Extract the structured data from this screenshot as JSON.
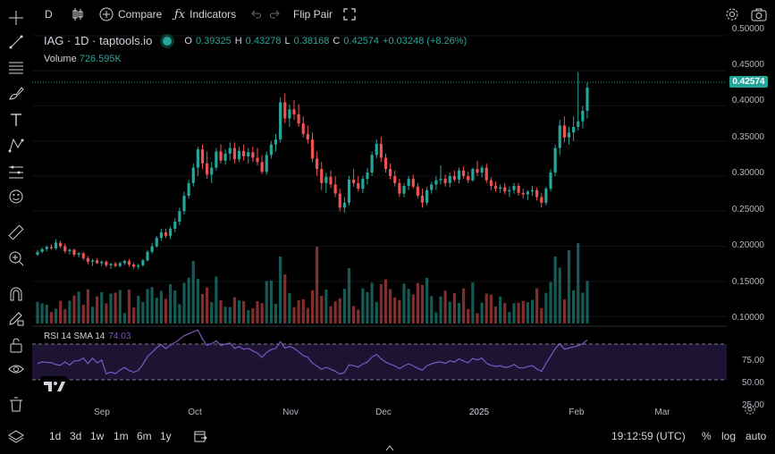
{
  "toolbar": {
    "interval": "D",
    "compare": "Compare",
    "indicators": "Indicators",
    "flip_pair": "Flip Pair"
  },
  "legend": {
    "symbol": "IAG · 1D · taptools.io",
    "open_label": "O",
    "open": "0.39325",
    "high_label": "H",
    "high": "0.43278",
    "low_label": "L",
    "low": "0.38168",
    "close_label": "C",
    "close": "0.42574",
    "change": "+0.03248 (+8.26%)",
    "volume_label": "Volume",
    "volume": "726.595K"
  },
  "rsi_legend": {
    "label": "RSI 14 SMA 14",
    "value": "74.03"
  },
  "price_axis": {
    "labels": [
      "0.50000",
      "0.45000",
      "0.40000",
      "0.35000",
      "0.30000",
      "0.25000",
      "0.20000",
      "0.15000",
      "0.10000"
    ],
    "current": "0.42574"
  },
  "rsi_axis": {
    "labels": [
      "75.00",
      "50.00",
      "25.00"
    ]
  },
  "time_axis": {
    "labels": [
      "Sep",
      "Oct",
      "Nov",
      "Dec",
      "2025",
      "Feb",
      "Mar"
    ]
  },
  "bottom": {
    "ranges": [
      "1d",
      "3d",
      "1w",
      "1m",
      "6m",
      "1y"
    ],
    "clock": "19:12:59 (UTC)",
    "percent": "%",
    "log": "log",
    "auto": "auto"
  },
  "colors": {
    "up": "#26a69a",
    "down": "#ef5350",
    "rsi": "#7e57c2"
  },
  "chart_data": {
    "type": "candlestick",
    "title": "IAG · 1D · taptools.io",
    "y_range": [
      0.09,
      0.51
    ],
    "x_range": [
      "Aug",
      "Mar"
    ],
    "ohlc": [
      [
        0.188,
        0.195,
        0.186,
        0.192
      ],
      [
        0.192,
        0.198,
        0.19,
        0.196
      ],
      [
        0.196,
        0.201,
        0.193,
        0.199
      ],
      [
        0.199,
        0.203,
        0.195,
        0.197
      ],
      [
        0.197,
        0.21,
        0.195,
        0.205
      ],
      [
        0.205,
        0.208,
        0.197,
        0.2
      ],
      [
        0.2,
        0.204,
        0.19,
        0.193
      ],
      [
        0.193,
        0.197,
        0.188,
        0.195
      ],
      [
        0.195,
        0.197,
        0.185,
        0.188
      ],
      [
        0.188,
        0.192,
        0.184,
        0.19
      ],
      [
        0.19,
        0.192,
        0.18,
        0.183
      ],
      [
        0.183,
        0.186,
        0.175,
        0.178
      ],
      [
        0.178,
        0.182,
        0.172,
        0.18
      ],
      [
        0.18,
        0.183,
        0.175,
        0.176
      ],
      [
        0.176,
        0.18,
        0.172,
        0.178
      ],
      [
        0.178,
        0.18,
        0.17,
        0.173
      ],
      [
        0.173,
        0.176,
        0.168,
        0.175
      ],
      [
        0.175,
        0.178,
        0.17,
        0.172
      ],
      [
        0.172,
        0.178,
        0.17,
        0.176
      ],
      [
        0.176,
        0.181,
        0.173,
        0.179
      ],
      [
        0.179,
        0.182,
        0.171,
        0.174
      ],
      [
        0.174,
        0.177,
        0.168,
        0.171
      ],
      [
        0.171,
        0.175,
        0.167,
        0.173
      ],
      [
        0.173,
        0.182,
        0.171,
        0.18
      ],
      [
        0.18,
        0.195,
        0.178,
        0.192
      ],
      [
        0.192,
        0.205,
        0.189,
        0.2
      ],
      [
        0.2,
        0.215,
        0.198,
        0.212
      ],
      [
        0.212,
        0.225,
        0.208,
        0.22
      ],
      [
        0.22,
        0.225,
        0.212,
        0.215
      ],
      [
        0.215,
        0.228,
        0.21,
        0.225
      ],
      [
        0.225,
        0.24,
        0.22,
        0.235
      ],
      [
        0.235,
        0.255,
        0.23,
        0.25
      ],
      [
        0.25,
        0.278,
        0.245,
        0.272
      ],
      [
        0.272,
        0.295,
        0.268,
        0.29
      ],
      [
        0.29,
        0.318,
        0.285,
        0.312
      ],
      [
        0.312,
        0.342,
        0.3,
        0.338
      ],
      [
        0.338,
        0.345,
        0.31,
        0.318
      ],
      [
        0.318,
        0.335,
        0.296,
        0.302
      ],
      [
        0.302,
        0.32,
        0.29,
        0.312
      ],
      [
        0.312,
        0.34,
        0.308,
        0.335
      ],
      [
        0.335,
        0.345,
        0.318,
        0.322
      ],
      [
        0.322,
        0.338,
        0.316,
        0.332
      ],
      [
        0.332,
        0.348,
        0.322,
        0.34
      ],
      [
        0.34,
        0.348,
        0.318,
        0.324
      ],
      [
        0.324,
        0.342,
        0.32,
        0.336
      ],
      [
        0.336,
        0.345,
        0.322,
        0.328
      ],
      [
        0.328,
        0.34,
        0.318,
        0.334
      ],
      [
        0.334,
        0.342,
        0.32,
        0.326
      ],
      [
        0.326,
        0.34,
        0.315,
        0.32
      ],
      [
        0.32,
        0.33,
        0.303,
        0.306
      ],
      [
        0.306,
        0.335,
        0.302,
        0.33
      ],
      [
        0.33,
        0.35,
        0.325,
        0.345
      ],
      [
        0.345,
        0.36,
        0.335,
        0.352
      ],
      [
        0.352,
        0.412,
        0.348,
        0.405
      ],
      [
        0.405,
        0.418,
        0.375,
        0.382
      ],
      [
        0.382,
        0.402,
        0.37,
        0.395
      ],
      [
        0.395,
        0.408,
        0.38,
        0.388
      ],
      [
        0.388,
        0.402,
        0.37,
        0.375
      ],
      [
        0.375,
        0.385,
        0.355,
        0.36
      ],
      [
        0.36,
        0.372,
        0.346,
        0.352
      ],
      [
        0.352,
        0.362,
        0.32,
        0.325
      ],
      [
        0.325,
        0.335,
        0.3,
        0.31
      ],
      [
        0.31,
        0.32,
        0.28,
        0.29
      ],
      [
        0.29,
        0.305,
        0.276,
        0.299
      ],
      [
        0.299,
        0.308,
        0.283,
        0.288
      ],
      [
        0.288,
        0.3,
        0.27,
        0.275
      ],
      [
        0.275,
        0.282,
        0.25,
        0.255
      ],
      [
        0.255,
        0.27,
        0.248,
        0.262
      ],
      [
        0.262,
        0.3,
        0.258,
        0.295
      ],
      [
        0.295,
        0.31,
        0.285,
        0.29
      ],
      [
        0.29,
        0.3,
        0.278,
        0.282
      ],
      [
        0.282,
        0.3,
        0.276,
        0.296
      ],
      [
        0.296,
        0.312,
        0.288,
        0.305
      ],
      [
        0.305,
        0.335,
        0.3,
        0.33
      ],
      [
        0.33,
        0.352,
        0.325,
        0.346
      ],
      [
        0.346,
        0.356,
        0.32,
        0.326
      ],
      [
        0.326,
        0.332,
        0.305,
        0.31
      ],
      [
        0.31,
        0.318,
        0.295,
        0.3
      ],
      [
        0.3,
        0.308,
        0.285,
        0.29
      ],
      [
        0.29,
        0.296,
        0.27,
        0.275
      ],
      [
        0.275,
        0.29,
        0.27,
        0.286
      ],
      [
        0.286,
        0.3,
        0.28,
        0.296
      ],
      [
        0.296,
        0.302,
        0.282,
        0.285
      ],
      [
        0.285,
        0.29,
        0.268,
        0.272
      ],
      [
        0.272,
        0.282,
        0.255,
        0.262
      ],
      [
        0.262,
        0.285,
        0.258,
        0.28
      ],
      [
        0.28,
        0.292,
        0.275,
        0.288
      ],
      [
        0.288,
        0.3,
        0.28,
        0.294
      ],
      [
        0.294,
        0.315,
        0.288,
        0.296
      ],
      [
        0.296,
        0.302,
        0.285,
        0.29
      ],
      [
        0.29,
        0.305,
        0.284,
        0.3
      ],
      [
        0.3,
        0.308,
        0.292,
        0.295
      ],
      [
        0.295,
        0.312,
        0.29,
        0.308
      ],
      [
        0.308,
        0.314,
        0.296,
        0.3
      ],
      [
        0.3,
        0.306,
        0.29,
        0.294
      ],
      [
        0.294,
        0.312,
        0.292,
        0.31
      ],
      [
        0.31,
        0.322,
        0.3,
        0.305
      ],
      [
        0.305,
        0.315,
        0.298,
        0.312
      ],
      [
        0.312,
        0.318,
        0.29,
        0.294
      ],
      [
        0.294,
        0.298,
        0.28,
        0.286
      ],
      [
        0.286,
        0.292,
        0.278,
        0.282
      ],
      [
        0.282,
        0.288,
        0.276,
        0.284
      ],
      [
        0.284,
        0.29,
        0.274,
        0.278
      ],
      [
        0.278,
        0.285,
        0.27,
        0.28
      ],
      [
        0.28,
        0.29,
        0.275,
        0.286
      ],
      [
        0.286,
        0.29,
        0.272,
        0.276
      ],
      [
        0.276,
        0.282,
        0.268,
        0.274
      ],
      [
        0.274,
        0.28,
        0.266,
        0.278
      ],
      [
        0.278,
        0.286,
        0.272,
        0.28
      ],
      [
        0.28,
        0.284,
        0.265,
        0.27
      ],
      [
        0.27,
        0.276,
        0.255,
        0.262
      ],
      [
        0.262,
        0.285,
        0.258,
        0.282
      ],
      [
        0.282,
        0.31,
        0.278,
        0.305
      ],
      [
        0.305,
        0.345,
        0.3,
        0.34
      ],
      [
        0.34,
        0.38,
        0.33,
        0.372
      ],
      [
        0.372,
        0.385,
        0.348,
        0.355
      ],
      [
        0.355,
        0.37,
        0.345,
        0.362
      ],
      [
        0.362,
        0.385,
        0.35,
        0.37
      ],
      [
        0.37,
        0.448,
        0.365,
        0.378
      ],
      [
        0.378,
        0.4,
        0.368,
        0.393
      ],
      [
        0.393,
        0.433,
        0.382,
        0.426
      ]
    ],
    "volume_scale": [
      0,
      1
    ]
  }
}
